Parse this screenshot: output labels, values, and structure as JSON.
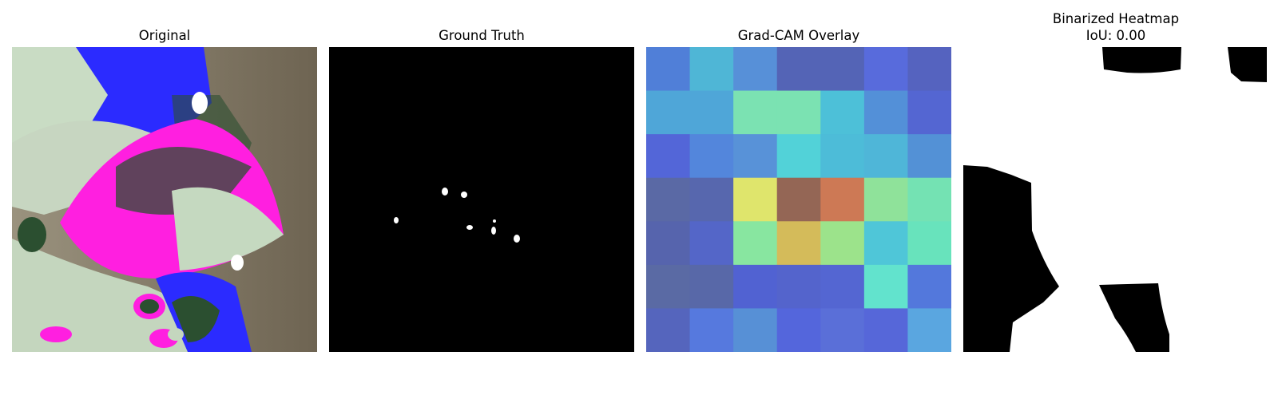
{
  "panels": {
    "original": {
      "title": "Original"
    },
    "ground_truth": {
      "title": "Ground Truth"
    },
    "gradcam": {
      "title": "Grad-CAM Overlay"
    },
    "binarized": {
      "title_line1": "Binarized Heatmap",
      "title_line2": "IoU: 0.00"
    }
  },
  "colors": {
    "leaf_pale": "#c9dcc4",
    "magenta": "#ff1fe0",
    "blue": "#2b2bff",
    "dark_green": "#2b4f30",
    "bokeh_brown": "#6f6553",
    "mask_white": "#ffffff",
    "mask_black": "#000000"
  },
  "gradcam_grid": [
    [
      "#507fd8",
      "#4fb6d6",
      "#5790d8",
      "#5464b6",
      "#5464b6",
      "#586bdc",
      "#5563bf"
    ],
    [
      "#4fa6d8",
      "#4fa6d8",
      "#7be2b2",
      "#7be2b2",
      "#4dc0d8",
      "#5390d8",
      "#5466d2"
    ],
    [
      "#5366d8",
      "#5386dc",
      "#5892d8",
      "#52d2d8",
      "#4dbcd8",
      "#4fb6d8",
      "#5391d6"
    ],
    [
      "#5a69a5",
      "#5767ae",
      "#dfe56c",
      "#946655",
      "#cd7955",
      "#8fe29a",
      "#74e2b3"
    ],
    [
      "#5664ad",
      "#5466c8",
      "#88e6a0",
      "#d4bb5a",
      "#9ce38b",
      "#4fc6d8",
      "#68e3bc"
    ],
    [
      "#5a6aa4",
      "#5868a8",
      "#5162d2",
      "#5464cc",
      "#5466d2",
      "#62e3cd",
      "#5378dc"
    ],
    [
      "#5565bd",
      "#5679de",
      "#5790d6",
      "#5466dc",
      "#5a6fd8",
      "#5667d9",
      "#5aa6e0"
    ]
  ]
}
